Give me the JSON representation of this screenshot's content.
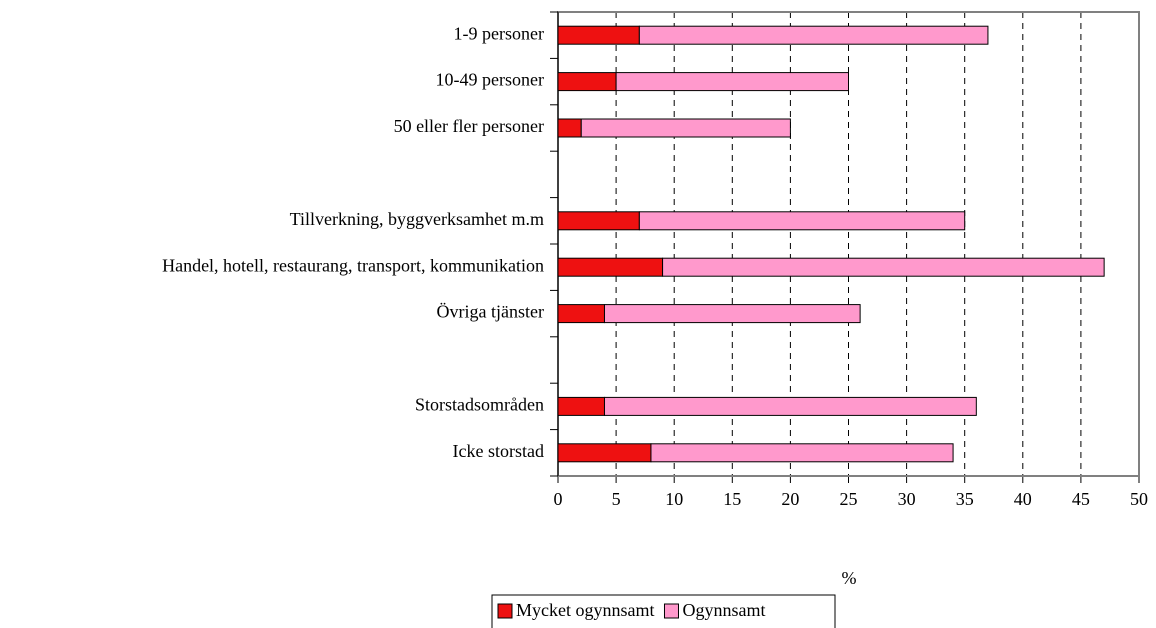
{
  "chart_data": {
    "type": "bar",
    "orientation": "horizontal",
    "stacked": true,
    "categories": [
      "1-9 personer",
      "10-49 personer",
      "50 eller fler personer",
      null,
      "Tillverkning, byggverksamhet m.m",
      "Handel, hotell, restaurang, transport, kommunikation",
      "Övriga tjänster",
      null,
      "Storstadsområden",
      "Icke storstad"
    ],
    "series": [
      {
        "name": "Mycket ogynnsamt",
        "color": "#ee1111",
        "values": [
          7,
          5,
          2,
          null,
          7,
          9,
          4,
          null,
          4,
          8
        ]
      },
      {
        "name": "Ogynnsamt",
        "color": "#ff99cc",
        "values": [
          30,
          20,
          18,
          null,
          28,
          38,
          22,
          null,
          32,
          26
        ]
      }
    ],
    "xlabel": "%",
    "xlim": [
      0,
      50
    ],
    "xticks": [
      0,
      5,
      10,
      15,
      20,
      25,
      30,
      35,
      40,
      45,
      50
    ],
    "grid": true,
    "legend": "bottom"
  }
}
